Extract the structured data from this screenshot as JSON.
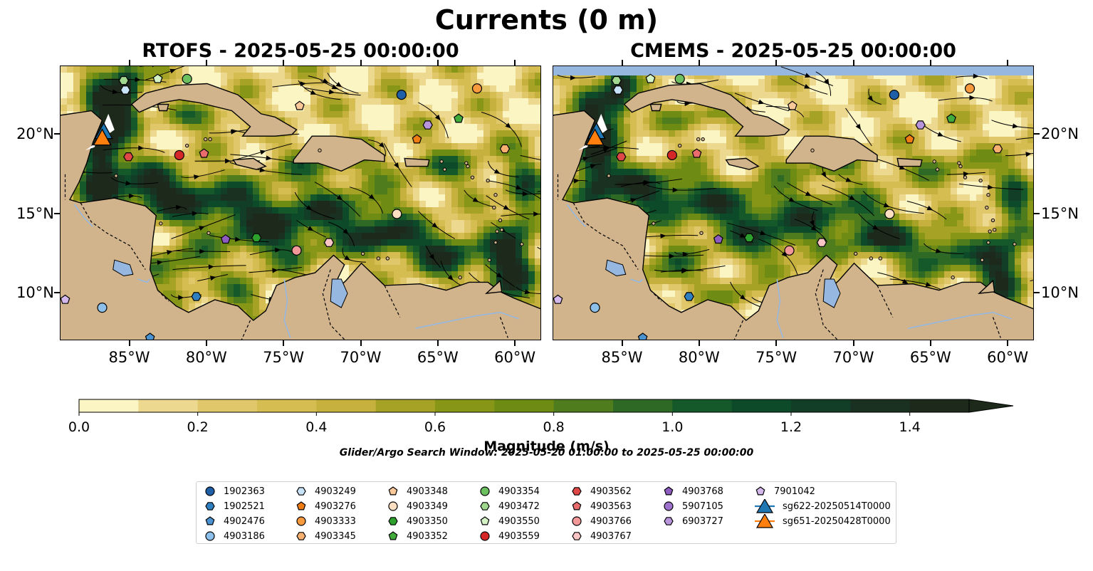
{
  "figure": {
    "title": "Currents (0 m)",
    "search_window": "Glider/Argo Search Window: 2025-05-20 01:00:00 to 2025-05-25 00:00:00"
  },
  "chart_data": [
    {
      "type": "heatmap",
      "title": "RTOFS - 2025-05-25 00:00:00",
      "xlim": [
        -89.5,
        -58.3
      ],
      "ylim": [
        7.0,
        24.3
      ],
      "x_ticks": [
        "85°W",
        "80°W",
        "75°W",
        "70°W",
        "65°W",
        "60°W"
      ],
      "y_ticks": [
        "20°N",
        "15°N",
        "10°N"
      ],
      "y_tick_values": [
        20,
        15,
        10
      ],
      "x_tick_values": [
        -85,
        -80,
        -75,
        -70,
        -65,
        -60
      ],
      "variable": "surface current magnitude with streamlines"
    },
    {
      "type": "heatmap",
      "title": "CMEMS - 2025-05-25 00:00:00",
      "xlim": [
        -89.5,
        -58.3
      ],
      "ylim": [
        7.0,
        24.3
      ],
      "x_ticks": [
        "85°W",
        "80°W",
        "75°W",
        "70°W",
        "65°W",
        "60°W"
      ],
      "y_ticks": [
        "20°N",
        "15°N",
        "10°N"
      ],
      "y_tick_values": [
        20,
        15,
        10
      ],
      "x_tick_values": [
        -85,
        -80,
        -75,
        -70,
        -65,
        -60
      ],
      "variable": "surface current magnitude with streamlines"
    }
  ],
  "colorbar": {
    "label": "Magnitude (m/s)",
    "ticks": [
      "0.0",
      "0.2",
      "0.4",
      "0.6",
      "0.8",
      "1.0",
      "1.2",
      "1.4"
    ],
    "tick_values": [
      0.0,
      0.2,
      0.4,
      0.6,
      0.8,
      1.0,
      1.2,
      1.4
    ],
    "range": [
      0.0,
      1.5
    ],
    "extend": "max",
    "colors": [
      "#fbf4c3",
      "#ecd98f",
      "#e0c76a",
      "#d6bd52",
      "#c6b13e",
      "#a6a226",
      "#889618",
      "#6e8c14",
      "#4f7c1c",
      "#2e6a26",
      "#15582a",
      "#0c4a2a",
      "#123d27",
      "#1a3122",
      "#1d2a1b"
    ]
  },
  "legend": {
    "items": [
      {
        "label": "1902363",
        "marker": "circle",
        "color": "#1f5fa8"
      },
      {
        "label": "1902521",
        "marker": "hexagon",
        "color": "#2f7fc1"
      },
      {
        "label": "4902476",
        "marker": "pentagon",
        "color": "#4b93d0"
      },
      {
        "label": "4903186",
        "marker": "circle",
        "color": "#8cc0ea"
      },
      {
        "label": "4903249",
        "marker": "hexagon",
        "color": "#c8e2f8"
      },
      {
        "label": "4903276",
        "marker": "pentagon",
        "color": "#f07c14"
      },
      {
        "label": "4903333",
        "marker": "circle",
        "color": "#f69a3d"
      },
      {
        "label": "4903345",
        "marker": "hexagon",
        "color": "#f8b070"
      },
      {
        "label": "4903348",
        "marker": "pentagon",
        "color": "#fbc89a"
      },
      {
        "label": "4903349",
        "marker": "circle",
        "color": "#fde0c2"
      },
      {
        "label": "4903350",
        "marker": "hexagon",
        "color": "#2ca02c"
      },
      {
        "label": "4903352",
        "marker": "pentagon",
        "color": "#41ab3c"
      },
      {
        "label": "4903354",
        "marker": "circle",
        "color": "#6cc060"
      },
      {
        "label": "4903472",
        "marker": "hexagon",
        "color": "#a0d890"
      },
      {
        "label": "4903550",
        "marker": "pentagon",
        "color": "#d4f2c4"
      },
      {
        "label": "4903559",
        "marker": "circle",
        "color": "#d62728"
      },
      {
        "label": "4903562",
        "marker": "hexagon",
        "color": "#e04848"
      },
      {
        "label": "4903563",
        "marker": "pentagon",
        "color": "#ea6c6c"
      },
      {
        "label": "4903766",
        "marker": "circle",
        "color": "#f29898"
      },
      {
        "label": "4903767",
        "marker": "hexagon",
        "color": "#f8c4c4"
      },
      {
        "label": "4903768",
        "marker": "pentagon",
        "color": "#8e5cc0"
      },
      {
        "label": "5907105",
        "marker": "circle",
        "color": "#9e72cc"
      },
      {
        "label": "6903727",
        "marker": "hexagon",
        "color": "#b894da"
      },
      {
        "label": "7901042",
        "marker": "pentagon",
        "color": "#d4b8ec"
      },
      {
        "label": "sg622-20250514T0000",
        "marker": "triangle",
        "color": "#1f77b4"
      },
      {
        "label": "sg651-20250428T0000",
        "marker": "triangle",
        "color": "#ff7f0e"
      }
    ]
  },
  "floats_rtofs": [
    {
      "id": "4903249",
      "lon": -85.3,
      "lat": 22.8
    },
    {
      "id": "4903472",
      "lon": -85.4,
      "lat": 23.4
    },
    {
      "id": "4903550",
      "lon": -83.2,
      "lat": 23.5
    },
    {
      "id": "4903354",
      "lon": -81.3,
      "lat": 23.5
    },
    {
      "id": "4903348",
      "lon": -74.0,
      "lat": 21.8
    },
    {
      "id": "1902363",
      "lon": -67.4,
      "lat": 22.5
    },
    {
      "id": "4903333",
      "lon": -62.5,
      "lat": 22.9
    },
    {
      "id": "4903352",
      "lon": -63.7,
      "lat": 21.0
    },
    {
      "id": "6903727",
      "lon": -65.7,
      "lat": 20.6
    },
    {
      "id": "4903276",
      "lon": -66.4,
      "lat": 19.7
    },
    {
      "id": "4903345",
      "lon": -60.7,
      "lat": 19.1
    },
    {
      "id": "4903562",
      "lon": -85.1,
      "lat": 18.6
    },
    {
      "id": "4903559",
      "lon": -81.8,
      "lat": 18.7
    },
    {
      "id": "4903563",
      "lon": -80.2,
      "lat": 18.8
    },
    {
      "id": "4903349",
      "lon": -67.7,
      "lat": 15.0
    },
    {
      "id": "4903768",
      "lon": -78.8,
      "lat": 13.4
    },
    {
      "id": "4903350",
      "lon": -76.8,
      "lat": 13.5
    },
    {
      "id": "4903766",
      "lon": -74.2,
      "lat": 12.7
    },
    {
      "id": "4903767",
      "lon": -72.1,
      "lat": 13.2
    },
    {
      "id": "1902521",
      "lon": -80.7,
      "lat": 9.8
    },
    {
      "id": "4903186",
      "lon": -86.8,
      "lat": 9.1
    },
    {
      "id": "7901042",
      "lon": -89.2,
      "lat": 9.6
    },
    {
      "id": "4902476",
      "lon": -83.7,
      "lat": 7.2
    }
  ],
  "gliders": [
    {
      "id": "sg622-20250514T0000",
      "lon": -86.7,
      "lat": 20.1
    },
    {
      "id": "sg651-20250428T0000",
      "lon": -86.8,
      "lat": 19.7
    }
  ]
}
